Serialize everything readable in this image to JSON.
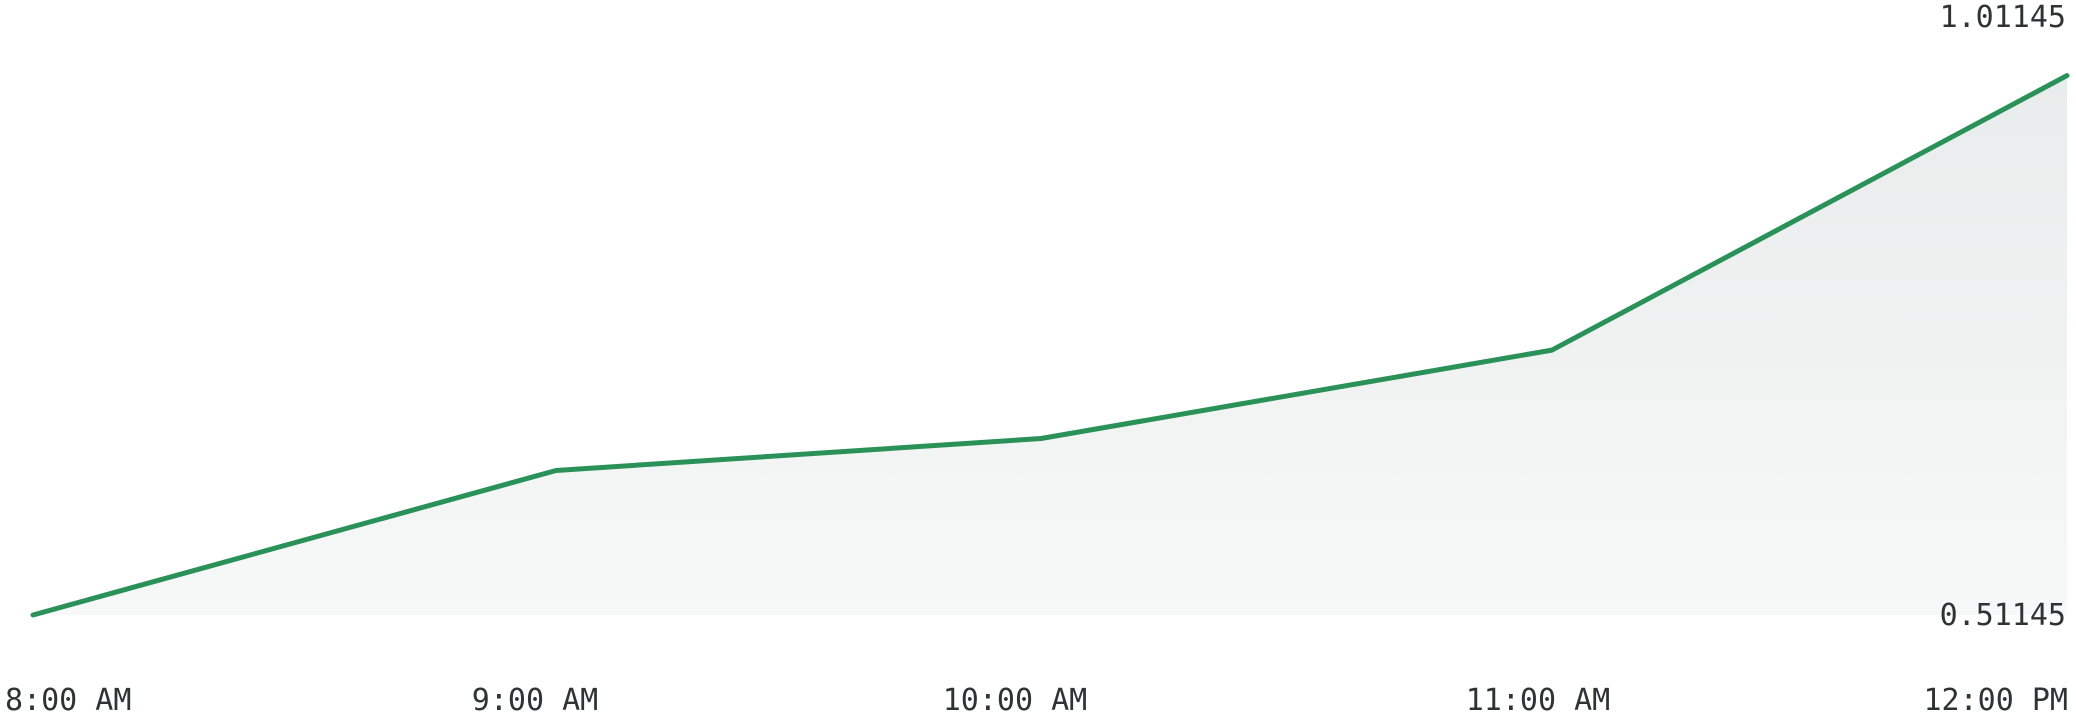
{
  "chart_data": {
    "type": "area",
    "title": "",
    "xlabel": "",
    "ylabel": "",
    "categories": [
      "8:00 AM",
      "9:00 AM",
      "10:00 AM",
      "11:00 AM",
      "12:00 PM"
    ],
    "series": [
      {
        "values": [
          0.51145,
          0.6369,
          0.6647,
          0.7414,
          0.9797
        ]
      }
    ],
    "y_ticks": [
      "1.01145",
      "0.51145"
    ],
    "ylim": [
      0.51145,
      1.01145
    ],
    "y_axis_position": "right",
    "grid": false,
    "legend": "none",
    "colors": {
      "line": "#2a9158",
      "fill_top": "#e9ecec",
      "fill_bottom": "#f7f8f8",
      "text": "#2f3336"
    }
  }
}
